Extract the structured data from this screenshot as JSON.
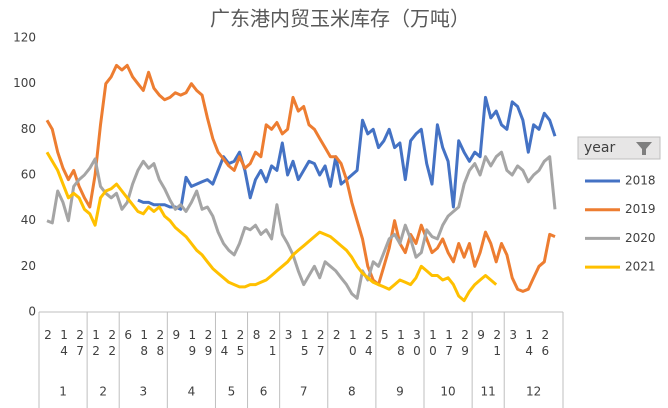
{
  "chart_data": {
    "type": "line",
    "title": "广东港内贸玉米库存（万吨）",
    "categories": [
      "2",
      null,
      null,
      "14",
      null,
      null,
      "27",
      null,
      null,
      "12",
      null,
      null,
      "22",
      null,
      null,
      "6",
      null,
      null,
      "18",
      null,
      null,
      "28",
      null,
      null,
      "9",
      null,
      null,
      "19",
      null,
      null,
      "29",
      null,
      null,
      "14",
      null,
      null,
      "25",
      null,
      null,
      "8",
      null,
      null,
      "21",
      null,
      null,
      "3",
      null,
      null,
      "15",
      null,
      null,
      "27",
      null,
      null,
      "2",
      null,
      null,
      "10",
      null,
      null,
      "24",
      null,
      null,
      "5",
      null,
      null,
      "18",
      null,
      null,
      "30",
      null,
      null,
      "10",
      null,
      null,
      "17",
      null,
      null,
      "29",
      null,
      null,
      "9",
      null,
      null,
      "21",
      null,
      null,
      "3",
      null,
      null,
      "14",
      null,
      null,
      "26",
      null,
      null
    ],
    "month_groups": [
      {
        "label": "1",
        "count": 9
      },
      {
        "label": "2",
        "count": 6
      },
      {
        "label": "3",
        "count": 9
      },
      {
        "label": "4",
        "count": 9
      },
      {
        "label": "5",
        "count": 6
      },
      {
        "label": "6",
        "count": 6
      },
      {
        "label": "7",
        "count": 9
      },
      {
        "label": "8",
        "count": 9
      },
      {
        "label": "9",
        "count": 9
      },
      {
        "label": "10",
        "count": 9
      },
      {
        "label": "11",
        "count": 6
      },
      {
        "label": "12",
        "count": 9
      }
    ],
    "legend_title": "year",
    "series": [
      {
        "name": "2018",
        "color": "#4472c4",
        "values": [
          null,
          null,
          null,
          null,
          null,
          null,
          null,
          null,
          null,
          null,
          null,
          null,
          null,
          null,
          null,
          null,
          null,
          49,
          48,
          48,
          47,
          47,
          47,
          46,
          46,
          45,
          59,
          55,
          56,
          57,
          58,
          56,
          62,
          68,
          65,
          66,
          70,
          62,
          50,
          58,
          62,
          57,
          64,
          62,
          74,
          60,
          66,
          58,
          62,
          66,
          65,
          60,
          64,
          55,
          68,
          56,
          58,
          60,
          62,
          84,
          78,
          80,
          72,
          75,
          80,
          72,
          74,
          58,
          75,
          78,
          80,
          65,
          56,
          82,
          72,
          66,
          46,
          75,
          70,
          66,
          70,
          68,
          94,
          85,
          88,
          82,
          80,
          92,
          90,
          84,
          70,
          82,
          80,
          87,
          84,
          77
        ]
      },
      {
        "name": "2019",
        "color": "#ed7d31",
        "values": [
          84,
          80,
          70,
          63,
          58,
          62,
          55,
          50,
          46,
          60,
          82,
          100,
          103,
          108,
          106,
          108,
          103,
          100,
          97,
          105,
          98,
          95,
          93,
          94,
          96,
          95,
          96,
          100,
          97,
          95,
          85,
          76,
          70,
          67,
          64,
          62,
          68,
          63,
          65,
          70,
          68,
          82,
          80,
          83,
          78,
          80,
          94,
          88,
          90,
          82,
          80,
          76,
          72,
          68,
          68,
          65,
          58,
          48,
          40,
          32,
          20,
          14,
          12,
          20,
          28,
          40,
          30,
          26,
          34,
          30,
          38,
          32,
          26,
          28,
          32,
          26,
          22,
          30,
          24,
          30,
          20,
          26,
          35,
          30,
          22,
          30,
          25,
          15,
          10,
          9,
          10,
          15,
          20,
          22,
          34,
          33
        ]
      },
      {
        "name": "2020",
        "color": "#a5a5a5",
        "values": [
          40,
          39,
          53,
          48,
          40,
          55,
          58,
          60,
          63,
          67,
          55,
          52,
          50,
          52,
          45,
          48,
          56,
          62,
          66,
          63,
          65,
          58,
          54,
          49,
          45,
          47,
          44,
          48,
          53,
          45,
          46,
          42,
          35,
          30,
          27,
          25,
          30,
          37,
          36,
          38,
          34,
          36,
          32,
          47,
          34,
          30,
          25,
          18,
          12,
          16,
          20,
          15,
          22,
          20,
          18,
          15,
          12,
          8,
          6,
          18,
          14,
          22,
          20,
          26,
          32,
          34,
          30,
          38,
          32,
          24,
          26,
          36,
          33,
          32,
          38,
          42,
          44,
          46,
          56,
          62,
          65,
          60,
          68,
          64,
          68,
          70,
          62,
          60,
          64,
          62,
          57,
          60,
          62,
          66,
          68,
          45
        ]
      },
      {
        "name": "2021",
        "color": "#ffc000",
        "values": [
          70,
          66,
          62,
          56,
          50,
          52,
          50,
          45,
          43,
          38,
          50,
          53,
          54,
          56,
          53,
          50,
          47,
          44,
          43,
          46,
          44,
          46,
          42,
          40,
          37,
          35,
          33,
          30,
          27,
          25,
          22,
          19,
          17,
          15,
          13,
          12,
          11,
          11,
          12,
          12,
          13,
          14,
          16,
          18,
          20,
          22,
          25,
          27,
          29,
          31,
          33,
          35,
          34,
          33,
          31,
          29,
          27,
          24,
          20,
          17,
          15,
          13,
          12,
          11,
          10,
          12,
          14,
          13,
          12,
          15,
          20,
          18,
          16,
          16,
          14,
          15,
          12,
          7,
          5,
          9,
          12,
          14,
          16,
          14,
          12,
          null,
          null,
          null,
          null,
          null,
          null,
          null,
          null,
          null,
          null,
          null
        ]
      }
    ],
    "ylim": [
      0,
      120
    ],
    "yticks": [
      0,
      20,
      40,
      60,
      80,
      100,
      120
    ],
    "grid": false,
    "legend": "right"
  }
}
